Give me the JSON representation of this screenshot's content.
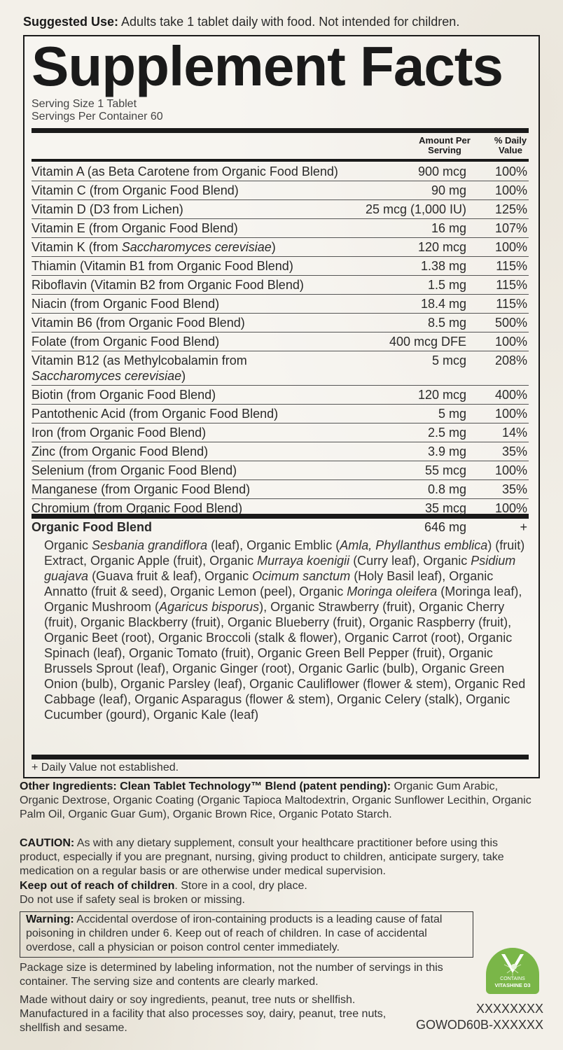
{
  "suggested_use": {
    "label": "Suggested Use:",
    "text": " Adults take 1 tablet daily with food. Not intended for children."
  },
  "facts": {
    "title": "Supplement Facts",
    "serving_size": "Serving Size 1 Tablet",
    "servings_per_container": "Servings Per Container 60",
    "header_amount": "Amount Per Serving",
    "header_dv": "% Daily Value",
    "nutrients": [
      {
        "name": [
          {
            "t": "Vitamin A (as Beta Carotene from Organic Food Blend)"
          }
        ],
        "amount": "900 mcg",
        "dv": "100%"
      },
      {
        "name": [
          {
            "t": "Vitamin C (from Organic Food Blend)"
          }
        ],
        "amount": "90 mg",
        "dv": "100%"
      },
      {
        "name": [
          {
            "t": "Vitamin D (D3 from Lichen)"
          }
        ],
        "amount": "25 mcg (1,000 IU)",
        "dv": "125%"
      },
      {
        "name": [
          {
            "t": "Vitamin E (from Organic Food Blend)"
          }
        ],
        "amount": "16 mg",
        "dv": "107%"
      },
      {
        "name": [
          {
            "t": "Vitamin K (from "
          },
          {
            "t": "Saccharomyces cerevisiae",
            "i": true
          },
          {
            "t": ")"
          }
        ],
        "amount": "120 mcg",
        "dv": "100%"
      },
      {
        "name": [
          {
            "t": "Thiamin (Vitamin B1 from Organic Food Blend)"
          }
        ],
        "amount": "1.38 mg",
        "dv": "115%"
      },
      {
        "name": [
          {
            "t": "Riboflavin (Vitamin B2 from Organic Food Blend)"
          }
        ],
        "amount": "1.5 mg",
        "dv": "115%"
      },
      {
        "name": [
          {
            "t": "Niacin (from Organic Food Blend)"
          }
        ],
        "amount": "18.4 mg",
        "dv": "115%"
      },
      {
        "name": [
          {
            "t": "Vitamin B6 (from Organic Food Blend)"
          }
        ],
        "amount": "8.5 mg",
        "dv": "500%"
      },
      {
        "name": [
          {
            "t": "Folate (from Organic Food Blend)"
          }
        ],
        "amount": "400 mcg DFE",
        "dv": "100%"
      },
      {
        "name": [
          {
            "t": "Vitamin B12 (as Methylcobalamin from "
          },
          {
            "t": "Saccharomyces cerevisiae",
            "i": true
          },
          {
            "t": ")"
          }
        ],
        "amount": "5 mcg",
        "dv": "208%"
      },
      {
        "name": [
          {
            "t": "Biotin (from Organic Food Blend)"
          }
        ],
        "amount": "120 mcg",
        "dv": "400%"
      },
      {
        "name": [
          {
            "t": "Pantothenic Acid (from Organic Food Blend)"
          }
        ],
        "amount": "5 mg",
        "dv": "100%"
      },
      {
        "name": [
          {
            "t": "Iron (from Organic Food Blend)"
          }
        ],
        "amount": "2.5 mg",
        "dv": "14%"
      },
      {
        "name": [
          {
            "t": "Zinc (from Organic Food Blend)"
          }
        ],
        "amount": "3.9 mg",
        "dv": "35%"
      },
      {
        "name": [
          {
            "t": "Selenium (from Organic Food Blend)"
          }
        ],
        "amount": "55 mcg",
        "dv": "100%"
      },
      {
        "name": [
          {
            "t": "Manganese (from Organic Food Blend)"
          }
        ],
        "amount": "0.8 mg",
        "dv": "35%"
      },
      {
        "name": [
          {
            "t": "Chromium (from Organic Food Blend)"
          }
        ],
        "amount": "35 mcg",
        "dv": "100%"
      }
    ],
    "blend": {
      "name": "Organic Food Blend",
      "amount": "646 mg",
      "dv": "+",
      "ingredients": [
        {
          "t": "Organic "
        },
        {
          "t": "Sesbania grandiflora",
          "i": true
        },
        {
          "t": " (leaf), Organic Emblic ("
        },
        {
          "t": "Amla, Phyllanthus emblica",
          "i": true
        },
        {
          "t": ") (fruit) Extract, Organic Apple (fruit), Organic "
        },
        {
          "t": "Murraya koenigii",
          "i": true
        },
        {
          "t": " (Curry leaf), Organic "
        },
        {
          "t": "Psidium guajava",
          "i": true
        },
        {
          "t": " (Guava fruit & leaf), Organic "
        },
        {
          "t": "Ocimum sanctum",
          "i": true
        },
        {
          "t": " (Holy Basil leaf), Organic Annatto (fruit & seed), Organic Lemon (peel), Organic "
        },
        {
          "t": "Moringa oleifera",
          "i": true
        },
        {
          "t": " (Moringa leaf), Organic Mushroom ("
        },
        {
          "t": "Agaricus bisporus",
          "i": true
        },
        {
          "t": "), Organic Strawberry (fruit), Organic Cherry (fruit), Organic Blackberry (fruit), Organic Blueberry (fruit), Organic Raspberry (fruit), Organic Beet (root), Organic Broccoli (stalk & flower), Organic Carrot (root), Organic Spinach (leaf), Organic Tomato (fruit), Organic Green Bell Pepper (fruit), Organic Brussels Sprout (leaf), Organic Ginger (root), Organic Garlic (bulb), Organic Green Onion (bulb), Organic Parsley (leaf), Organic Cauliflower (flower & stem), Organic Red Cabbage (leaf), Organic Asparagus (flower & stem), Organic Celery (stalk), Organic Cucumber (gourd), Organic Kale (leaf)"
        }
      ]
    },
    "dv_note": "+ Daily Value not established."
  },
  "other_ingredients": {
    "label": "Other Ingredients: Clean Tablet Technology™ Blend (patent pending):",
    "text": " Organic Gum Arabic, Organic Dextrose, Organic Coating (Organic Tapioca Maltodextrin, Organic Sunflower Lecithin, Organic Palm Oil, Organic Guar Gum), Organic Brown Rice, Organic Potato Starch."
  },
  "caution": {
    "label": "CAUTION:",
    "text": " As with any dietary supplement, consult your healthcare practitioner before using this product, especially if you are pregnant, nursing, giving product to children, anticipate surgery, take medication on a regular basis or are otherwise under medical supervision."
  },
  "keep_out": {
    "label": "Keep out of reach of children",
    "text": ". Store in a cool, dry place.",
    "line2": "Do not use if safety seal is broken or missing."
  },
  "warning": {
    "label": "Warning:",
    "text": " Accidental overdose of iron-containing products is a leading cause of fatal poisoning in children under 6. Keep out of reach of children. In case of accidental overdose, call a physician or poison control center immediately."
  },
  "package_note": "Package size is determined by labeling information, not the number of servings in this container. The serving size and contents are clearly marked.",
  "allergen_note": "Made without dairy or soy ingredients, peanut, tree nuts or shellfish. Manufactured in a facility that also processes soy, dairy, peanut, tree nuts, shellfish and sesame.",
  "badge": {
    "line1": "CONTAINS",
    "line2": "VITASHINE D3",
    "color": "#7ab648"
  },
  "codes": [
    "XXXXXXXX",
    "GOWOD60B-XXXXXX"
  ]
}
